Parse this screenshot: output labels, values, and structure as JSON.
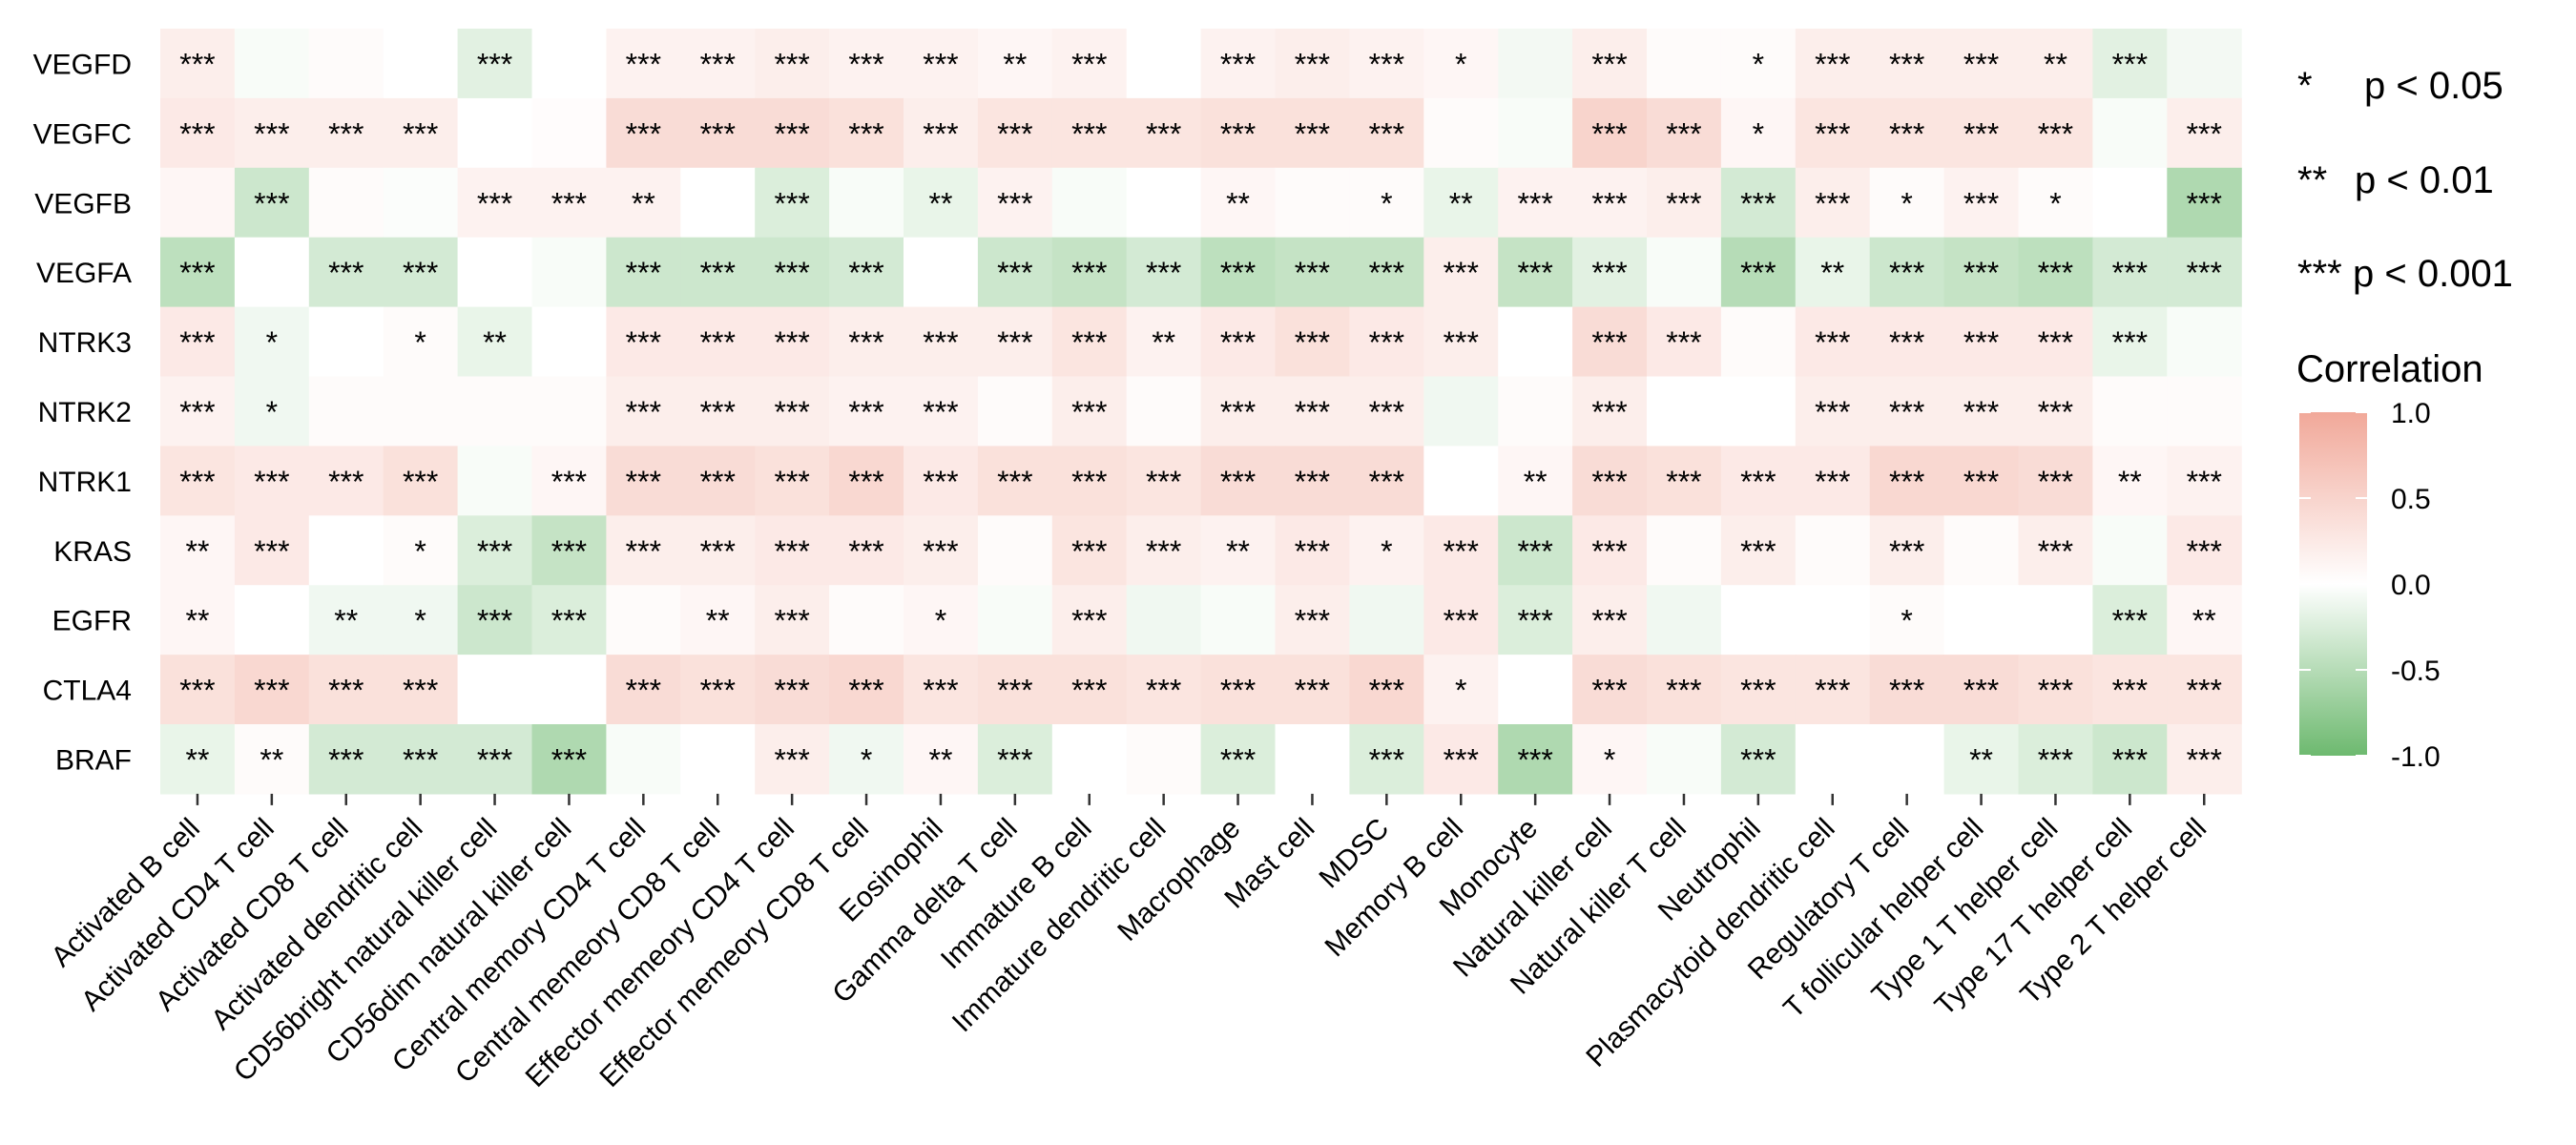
{
  "chart_data": {
    "type": "heatmap",
    "title": "",
    "xlabel": "",
    "ylabel": "",
    "rows": [
      "VEGFD",
      "VEGFC",
      "VEGFB",
      "VEGFA",
      "NTRK3",
      "NTRK2",
      "NTRK1",
      "KRAS",
      "EGFR",
      "CTLA4",
      "BRAF"
    ],
    "columns": [
      "Activated B cell",
      "Activated CD4 T cell",
      "Activated CD8 T cell",
      "Activated dendritic cell",
      "CD56bright natural killer cell",
      "CD56dim natural killer cell",
      "Central memory CD4 T cell",
      "Central memeory CD8 T cell",
      "Effector memeory CD4 T cell",
      "Effector memeory CD8 T cell",
      "Eosinophil",
      "Gamma delta T cell",
      "Immature  B cell",
      "Immature dendritic cell",
      "Macrophage",
      "Mast cell",
      "MDSC",
      "Memory B cell",
      "Monocyte",
      "Natural killer cell",
      "Natural killer T cell",
      "Neutrophil",
      "Plasmacytoid dendritic cell",
      "Regulatory T cell",
      "T follicular helper cell",
      "Type 1 T helper cell",
      "Type 17 T helper cell",
      "Type 2 T helper cell"
    ],
    "values": [
      [
        0.2,
        -0.05,
        0.05,
        0.0,
        -0.2,
        0.0,
        0.15,
        0.15,
        0.2,
        0.15,
        0.15,
        0.1,
        0.15,
        0.0,
        0.15,
        0.2,
        0.15,
        0.1,
        -0.08,
        0.2,
        0.05,
        0.05,
        0.2,
        0.2,
        0.2,
        0.2,
        -0.2,
        -0.08
      ],
      [
        0.25,
        0.2,
        0.2,
        0.2,
        0.0,
        0.03,
        0.4,
        0.4,
        0.4,
        0.35,
        0.2,
        0.3,
        0.3,
        0.3,
        0.35,
        0.35,
        0.35,
        0.05,
        -0.05,
        0.5,
        0.4,
        0.1,
        0.3,
        0.3,
        0.3,
        0.3,
        -0.05,
        0.2
      ],
      [
        0.1,
        -0.35,
        0.05,
        -0.03,
        0.15,
        0.15,
        0.15,
        0.0,
        -0.25,
        -0.05,
        -0.15,
        0.15,
        -0.05,
        0.0,
        0.1,
        0.05,
        0.05,
        -0.15,
        0.15,
        0.15,
        0.2,
        -0.3,
        0.2,
        0.05,
        0.15,
        0.05,
        0.0,
        -0.55
      ],
      [
        -0.45,
        0.0,
        -0.3,
        -0.3,
        0.0,
        -0.05,
        -0.35,
        -0.35,
        -0.35,
        -0.3,
        0.0,
        -0.35,
        -0.4,
        -0.3,
        -0.45,
        -0.4,
        -0.4,
        0.2,
        -0.4,
        -0.2,
        -0.05,
        -0.5,
        -0.15,
        -0.35,
        -0.4,
        -0.45,
        -0.3,
        -0.3
      ],
      [
        0.25,
        -0.1,
        0.0,
        0.05,
        -0.15,
        0.0,
        0.25,
        0.25,
        0.25,
        0.2,
        0.2,
        0.2,
        0.3,
        0.15,
        0.25,
        0.35,
        0.25,
        0.2,
        0.0,
        0.4,
        0.25,
        0.05,
        0.25,
        0.25,
        0.25,
        0.25,
        -0.15,
        -0.05
      ],
      [
        0.15,
        -0.1,
        0.05,
        0.05,
        0.05,
        0.05,
        0.2,
        0.2,
        0.2,
        0.15,
        0.15,
        0.05,
        0.2,
        0.05,
        0.2,
        0.2,
        0.2,
        -0.1,
        0.05,
        0.2,
        0.0,
        0.0,
        0.2,
        0.2,
        0.2,
        0.2,
        0.05,
        0.05
      ],
      [
        0.3,
        0.25,
        0.25,
        0.35,
        -0.05,
        0.1,
        0.4,
        0.4,
        0.35,
        0.45,
        0.25,
        0.35,
        0.35,
        0.3,
        0.4,
        0.4,
        0.4,
        0.0,
        0.1,
        0.4,
        0.35,
        0.25,
        0.25,
        0.45,
        0.45,
        0.4,
        0.1,
        0.15
      ],
      [
        0.1,
        0.25,
        0.0,
        0.05,
        -0.25,
        -0.4,
        0.2,
        0.2,
        0.25,
        0.25,
        0.2,
        0.05,
        0.3,
        0.2,
        0.15,
        0.25,
        0.15,
        0.25,
        -0.35,
        0.25,
        0.05,
        0.2,
        0.05,
        0.2,
        0.05,
        0.2,
        -0.05,
        0.25
      ],
      [
        0.1,
        0.0,
        -0.1,
        -0.1,
        -0.35,
        -0.25,
        0.05,
        0.1,
        0.2,
        0.05,
        0.1,
        -0.05,
        0.2,
        -0.1,
        -0.05,
        0.2,
        -0.1,
        0.25,
        -0.25,
        0.2,
        -0.1,
        0.0,
        0.0,
        0.05,
        0.0,
        0.0,
        -0.25,
        0.1
      ],
      [
        0.35,
        0.45,
        0.35,
        0.35,
        0.0,
        0.0,
        0.4,
        0.35,
        0.4,
        0.45,
        0.3,
        0.35,
        0.35,
        0.3,
        0.35,
        0.35,
        0.45,
        0.15,
        0.0,
        0.4,
        0.35,
        0.3,
        0.3,
        0.4,
        0.4,
        0.35,
        0.3,
        0.3
      ],
      [
        -0.15,
        0.05,
        -0.3,
        -0.3,
        -0.3,
        -0.55,
        -0.05,
        0.0,
        0.2,
        -0.1,
        0.1,
        -0.25,
        0.0,
        0.05,
        -0.25,
        0.0,
        -0.25,
        0.25,
        -0.55,
        0.1,
        -0.05,
        -0.3,
        0.0,
        0.0,
        -0.15,
        -0.25,
        -0.35,
        0.2
      ]
    ],
    "significance": [
      [
        "***",
        "",
        "",
        "",
        "***",
        "",
        "***",
        "***",
        "***",
        "***",
        "***",
        "**",
        "***",
        "",
        "***",
        "***",
        "***",
        "*",
        "",
        "***",
        "",
        "*",
        "***",
        "***",
        "***",
        "**",
        "***",
        ""
      ],
      [
        "***",
        "***",
        "***",
        "***",
        "",
        "",
        "***",
        "***",
        "***",
        "***",
        "***",
        "***",
        "***",
        "***",
        "***",
        "***",
        "***",
        "",
        "",
        "***",
        "***",
        "*",
        "***",
        "***",
        "***",
        "***",
        "",
        "***"
      ],
      [
        "",
        "***",
        "",
        "",
        "***",
        "***",
        "**",
        "",
        "***",
        "",
        "**",
        "***",
        "",
        "",
        "**",
        "",
        "*",
        "**",
        "***",
        "***",
        "***",
        "***",
        "***",
        "*",
        "***",
        "*",
        "",
        "***"
      ],
      [
        "***",
        "",
        "***",
        "***",
        "",
        "",
        "***",
        "***",
        "***",
        "***",
        "",
        "***",
        "***",
        "***",
        "***",
        "***",
        "***",
        "***",
        "***",
        "***",
        "",
        "***",
        "**",
        "***",
        "***",
        "***",
        "***",
        "***"
      ],
      [
        "***",
        "*",
        "",
        "*",
        "**",
        "",
        "***",
        "***",
        "***",
        "***",
        "***",
        "***",
        "***",
        "**",
        "***",
        "***",
        "***",
        "***",
        "",
        "***",
        "***",
        "",
        "***",
        "***",
        "***",
        "***",
        "***",
        ""
      ],
      [
        "***",
        "*",
        "",
        "",
        "",
        "",
        "***",
        "***",
        "***",
        "***",
        "***",
        "",
        "***",
        "",
        "***",
        "***",
        "***",
        "",
        "",
        "***",
        "",
        "",
        "***",
        "***",
        "***",
        "***",
        "",
        ""
      ],
      [
        "***",
        "***",
        "***",
        "***",
        "",
        "***",
        "***",
        "***",
        "***",
        "***",
        "***",
        "***",
        "***",
        "***",
        "***",
        "***",
        "***",
        "",
        "**",
        "***",
        "***",
        "***",
        "***",
        "***",
        "***",
        "***",
        "**",
        "***"
      ],
      [
        "**",
        "***",
        "",
        "*",
        "***",
        "***",
        "***",
        "***",
        "***",
        "***",
        "***",
        "",
        "***",
        "***",
        "**",
        "***",
        "*",
        "***",
        "***",
        "***",
        "",
        "***",
        "",
        "***",
        "",
        "***",
        "",
        "***"
      ],
      [
        "**",
        "",
        "**",
        "*",
        "***",
        "***",
        "",
        "**",
        "***",
        "",
        "*",
        "",
        "***",
        "",
        "",
        "***",
        "",
        "***",
        "***",
        "***",
        "",
        "",
        "",
        "*",
        "",
        "",
        "***",
        "**"
      ],
      [
        "***",
        "***",
        "***",
        "***",
        "",
        "",
        "***",
        "***",
        "***",
        "***",
        "***",
        "***",
        "***",
        "***",
        "***",
        "***",
        "***",
        "*",
        "",
        "***",
        "***",
        "***",
        "***",
        "***",
        "***",
        "***",
        "***",
        "***"
      ],
      [
        "**",
        "**",
        "***",
        "***",
        "***",
        "***",
        "",
        "",
        "***",
        "*",
        "**",
        "***",
        "",
        "",
        "***",
        "",
        "***",
        "***",
        "***",
        "*",
        "",
        "***",
        "",
        "",
        "**",
        "***",
        "***",
        "***"
      ]
    ],
    "color_scale": {
      "low": "#6DB96F",
      "mid": "#FFFFFF",
      "high": "#F1A899",
      "range": [
        -1.0,
        1.0
      ]
    },
    "significance_legend": [
      {
        "symbol": "*",
        "label": "p < 0.05"
      },
      {
        "symbol": "**",
        "label": "p < 0.01"
      },
      {
        "symbol": "***",
        "label": "p < 0.001"
      }
    ],
    "colorbar": {
      "title": "Correlation",
      "ticks": [
        1.0,
        0.5,
        0.0,
        -0.5,
        -1.0
      ],
      "tick_labels": [
        "1.0",
        "0.5",
        "0.0",
        "-0.5",
        "-1.0"
      ]
    },
    "grid": false,
    "legend_position": "right"
  }
}
